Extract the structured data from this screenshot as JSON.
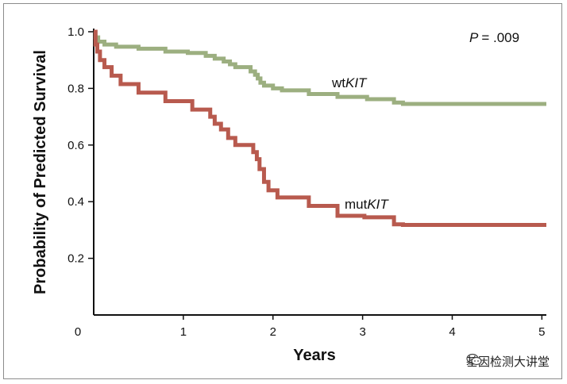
{
  "chart_data": {
    "type": "line",
    "step": true,
    "title": "",
    "xlabel": "Years",
    "ylabel": "Probability of Predicted Survival",
    "xlim": [
      0,
      5.05
    ],
    "ylim": [
      0.0,
      1.0
    ],
    "x_ticks": [
      0,
      1,
      2,
      3,
      4,
      5
    ],
    "y_ticks": [
      0.2,
      0.4,
      0.6,
      0.8,
      1.0
    ],
    "y_tick_labels": [
      "0.2",
      "0.4",
      "0.6",
      "0.8",
      "1.0"
    ],
    "annotation": {
      "p_label": "P",
      "p_value": "= .009"
    },
    "series": [
      {
        "name": "wtKIT",
        "label_prefix": "wt",
        "label_italic": "KIT",
        "color": "#9caf80",
        "points": [
          [
            0,
            1.0
          ],
          [
            0.02,
            0.98
          ],
          [
            0.05,
            0.965
          ],
          [
            0.12,
            0.955
          ],
          [
            0.25,
            0.947
          ],
          [
            0.5,
            0.94
          ],
          [
            0.8,
            0.93
          ],
          [
            1.05,
            0.925
          ],
          [
            1.25,
            0.915
          ],
          [
            1.35,
            0.905
          ],
          [
            1.45,
            0.895
          ],
          [
            1.52,
            0.885
          ],
          [
            1.58,
            0.875
          ],
          [
            1.75,
            0.86
          ],
          [
            1.8,
            0.848
          ],
          [
            1.83,
            0.835
          ],
          [
            1.86,
            0.82
          ],
          [
            1.9,
            0.81
          ],
          [
            2.0,
            0.8
          ],
          [
            2.1,
            0.793
          ],
          [
            2.4,
            0.78
          ],
          [
            2.72,
            0.77
          ],
          [
            3.05,
            0.762
          ],
          [
            3.35,
            0.75
          ],
          [
            3.45,
            0.745
          ],
          [
            5.05,
            0.745
          ]
        ]
      },
      {
        "name": "mutKIT",
        "label_prefix": "mut",
        "label_italic": "KIT",
        "color": "#b85a4e",
        "points": [
          [
            0,
            1.0
          ],
          [
            0.02,
            0.955
          ],
          [
            0.04,
            0.93
          ],
          [
            0.07,
            0.9
          ],
          [
            0.12,
            0.875
          ],
          [
            0.2,
            0.845
          ],
          [
            0.3,
            0.815
          ],
          [
            0.5,
            0.785
          ],
          [
            0.8,
            0.755
          ],
          [
            1.1,
            0.725
          ],
          [
            1.3,
            0.7
          ],
          [
            1.35,
            0.675
          ],
          [
            1.42,
            0.655
          ],
          [
            1.5,
            0.625
          ],
          [
            1.58,
            0.6
          ],
          [
            1.78,
            0.575
          ],
          [
            1.82,
            0.55
          ],
          [
            1.85,
            0.515
          ],
          [
            1.9,
            0.47
          ],
          [
            1.95,
            0.44
          ],
          [
            2.05,
            0.415
          ],
          [
            2.4,
            0.385
          ],
          [
            2.72,
            0.35
          ],
          [
            3.02,
            0.345
          ],
          [
            3.35,
            0.32
          ],
          [
            3.45,
            0.318
          ],
          [
            5.05,
            0.318
          ]
        ]
      }
    ]
  },
  "watermark": {
    "text": "基因检测大讲堂"
  }
}
